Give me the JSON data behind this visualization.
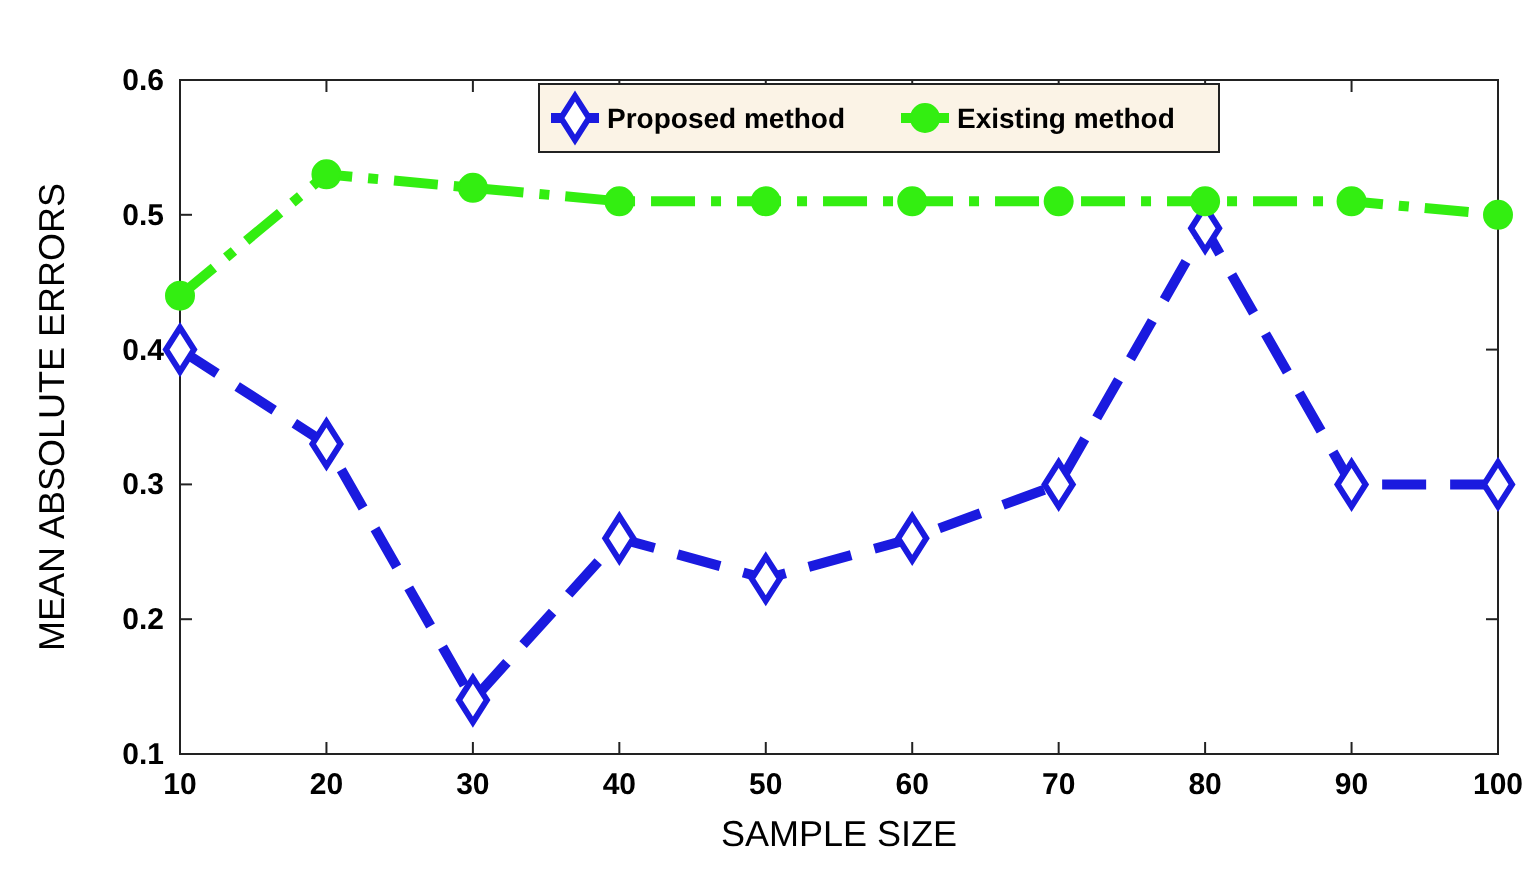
{
  "chart_data": {
    "type": "line",
    "xlabel": "SAMPLE SIZE",
    "ylabel": "MEAN ABSOLUTE ERRORS",
    "x": [
      10,
      20,
      30,
      40,
      50,
      60,
      70,
      80,
      90,
      100
    ],
    "xlim": [
      10,
      100
    ],
    "xticks": [
      10,
      20,
      30,
      40,
      50,
      60,
      70,
      80,
      90,
      100
    ],
    "ylim": [
      0.1,
      0.6
    ],
    "yticks": [
      0.1,
      0.2,
      0.3,
      0.4,
      0.5,
      0.6
    ],
    "grid": false,
    "legend": "top",
    "series": [
      {
        "name": "Proposed method",
        "color": "#1a1adf",
        "marker": "diamond",
        "line_style": "dashed",
        "values": [
          0.4,
          0.33,
          0.14,
          0.26,
          0.23,
          0.26,
          0.3,
          0.49,
          0.3,
          0.3
        ]
      },
      {
        "name": "Existing method",
        "color": "#33ee11",
        "marker": "circle",
        "line_style": "dashdot",
        "values": [
          0.44,
          0.53,
          0.52,
          0.51,
          0.51,
          0.51,
          0.51,
          0.51,
          0.51,
          0.5
        ]
      }
    ]
  }
}
